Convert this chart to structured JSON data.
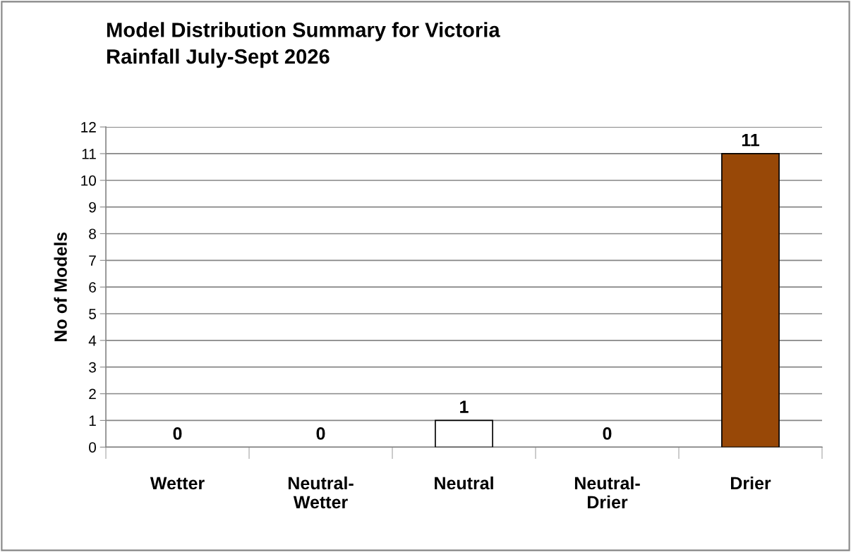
{
  "chart_data": {
    "type": "bar",
    "title": "Model Distribution Summary for Victoria\nRainfall July-Sept 2026",
    "ylabel": "No of Models",
    "categories": [
      "Wetter",
      "Neutral-\nWetter",
      "Neutral",
      "Neutral-\nDrier",
      "Drier"
    ],
    "values": [
      0,
      0,
      1,
      0,
      11
    ],
    "colors": [
      null,
      null,
      "#ffffff",
      null,
      "#984807"
    ],
    "ylim": [
      0,
      12
    ],
    "yticks": [
      0,
      1,
      2,
      3,
      4,
      5,
      6,
      7,
      8,
      9,
      10,
      11,
      12
    ],
    "grid": "y",
    "data_labels": true
  }
}
